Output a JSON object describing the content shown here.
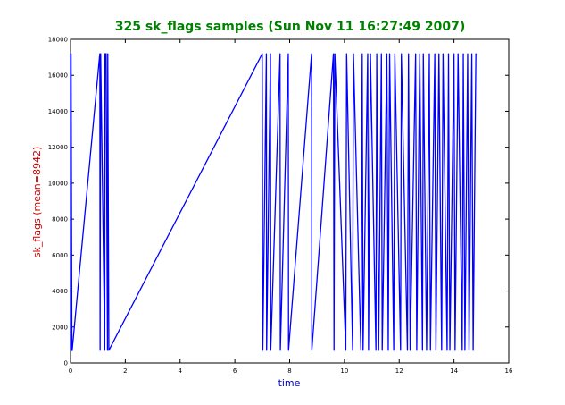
{
  "chart_data": {
    "type": "line",
    "title": "325 sk_flags samples (Sun Nov 11 16:27:49 2007)",
    "xlabel": "time",
    "ylabel": "sk_flags (mean=8942)",
    "xlim": [
      0,
      16
    ],
    "ylim": [
      0,
      18000
    ],
    "x_ticks": [
      0,
      2,
      4,
      6,
      8,
      10,
      12,
      14,
      16
    ],
    "y_ticks": [
      0,
      2000,
      4000,
      6000,
      8000,
      10000,
      12000,
      14000,
      16000,
      18000
    ],
    "grid": false,
    "legend": "none",
    "series": [
      {
        "x": [
          0.0,
          0.0,
          0.02,
          0.05,
          0.06,
          1.07,
          1.08,
          1.1,
          1.25,
          1.26,
          1.3,
          1.35,
          1.36,
          1.4,
          7.0,
          7.02,
          7.15,
          7.16,
          7.3,
          7.31,
          7.65,
          7.66,
          7.95,
          7.96,
          8.8,
          8.81,
          9.6,
          9.62,
          9.65,
          10.05,
          10.08,
          10.3,
          10.33,
          10.6,
          10.65,
          10.68,
          10.85,
          10.88,
          10.95,
          11.15,
          11.18,
          11.25,
          11.35,
          11.38,
          11.55,
          11.6,
          11.65,
          11.8,
          11.84,
          12.05,
          12.08,
          12.3,
          12.34,
          12.4,
          12.6,
          12.64,
          12.75,
          12.85,
          12.88,
          13.0,
          13.1,
          13.14,
          13.3,
          13.34,
          13.45,
          13.55,
          13.6,
          13.75,
          13.8,
          13.85,
          14.0,
          14.04,
          14.15,
          14.3,
          14.34,
          14.4,
          14.5,
          14.55,
          14.65,
          14.7,
          14.8
        ],
        "y": [
          17200,
          700,
          17200,
          700,
          700,
          17200,
          700,
          17200,
          700,
          17200,
          17200,
          700,
          17200,
          700,
          17200,
          700,
          17200,
          700,
          17200,
          700,
          17200,
          700,
          17200,
          700,
          17200,
          700,
          17200,
          700,
          17200,
          700,
          17200,
          700,
          17200,
          700,
          17200,
          700,
          17200,
          700,
          17200,
          700,
          17200,
          700,
          17200,
          700,
          17200,
          700,
          17200,
          700,
          17200,
          700,
          17200,
          700,
          17200,
          700,
          17200,
          700,
          17200,
          700,
          17200,
          700,
          17200,
          700,
          17200,
          700,
          17200,
          700,
          17200,
          700,
          17200,
          700,
          17200,
          700,
          17200,
          700,
          17200,
          700,
          17200,
          700,
          17200,
          700,
          17200
        ]
      }
    ]
  },
  "colors": {
    "title": "#008000",
    "xlabel": "#0000cc",
    "ylabel": "#cc0000",
    "line": "#0000ff",
    "axes": "#000000"
  }
}
